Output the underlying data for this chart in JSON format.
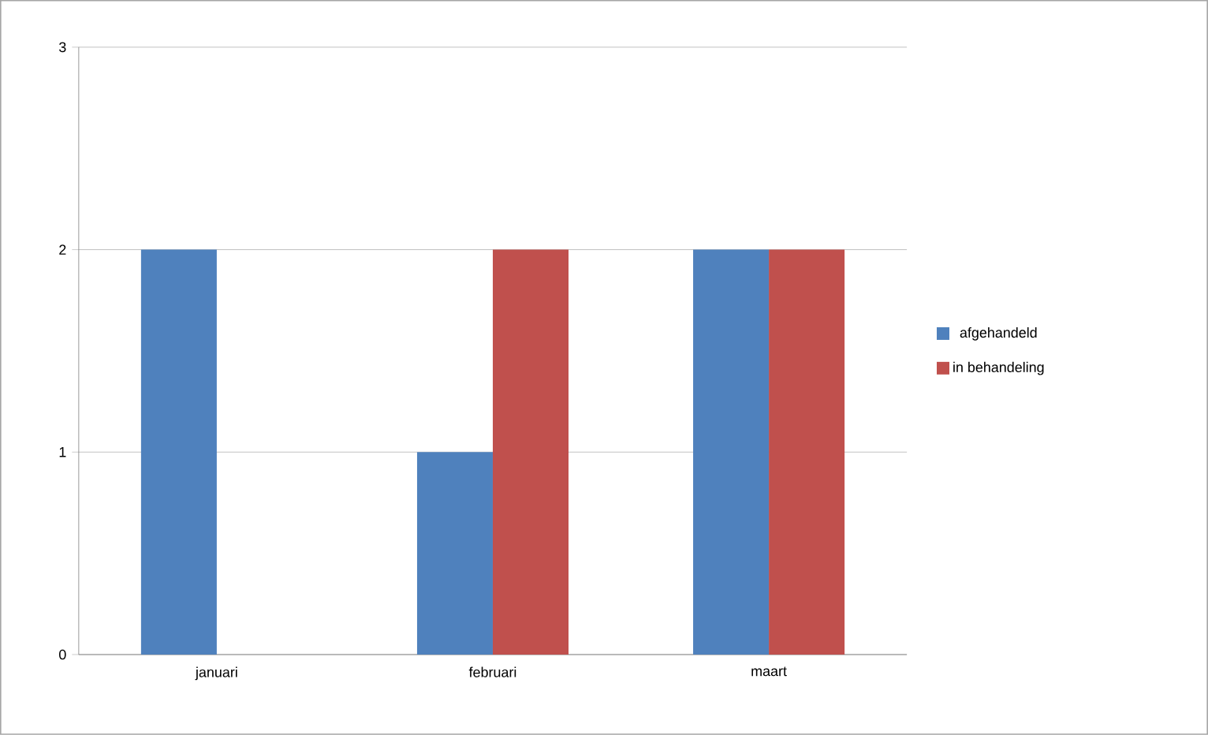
{
  "chart_data": {
    "type": "bar",
    "categories": [
      "januari",
      "februari",
      "maart"
    ],
    "series": [
      {
        "name": "afgehandeld",
        "color": "#4f81bd",
        "values": [
          2,
          1,
          2
        ]
      },
      {
        "name": "in behandeling",
        "color": "#c0504d",
        "values": [
          0,
          2,
          2
        ]
      }
    ],
    "ylim": [
      0,
      3
    ],
    "yticks": [
      0,
      1,
      2,
      3
    ],
    "grid": "y",
    "legend": "right"
  }
}
